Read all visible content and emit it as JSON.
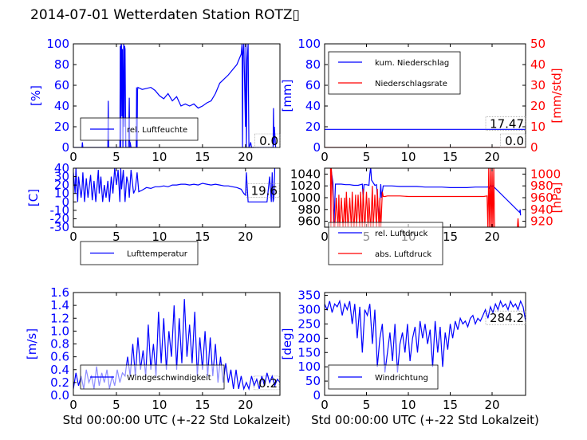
{
  "title": "2014-07-01 Wetterdaten Station ROTZ▯",
  "chart_data": [
    {
      "id": "humidity",
      "type": "line",
      "ylabel": "[%]",
      "xlim": [
        0,
        24
      ],
      "ylim": [
        0,
        100
      ],
      "xticks": [
        0,
        5,
        10,
        15,
        20
      ],
      "yticks": [
        0,
        20,
        40,
        60,
        80,
        100
      ],
      "value_label": "0.0",
      "legend": [
        "rel. Luftfeuchte"
      ],
      "series": [
        {
          "name": "rel. Luftfeuchte",
          "color": "#0000ff",
          "x": [
            0,
            0.5,
            1.0,
            1.05,
            1.1,
            2,
            4,
            4.05,
            4.1,
            5,
            5.4,
            5.45,
            5.5,
            5.55,
            5.6,
            5.65,
            5.7,
            5.75,
            5.8,
            5.85,
            5.9,
            5.95,
            6.0,
            6.05,
            6.1,
            6.4,
            6.5,
            6.55,
            6.6,
            6.7,
            7.0,
            7.3,
            7.35,
            7.4,
            7.45,
            7.5,
            8.0,
            8.5,
            9.0,
            9.5,
            10.0,
            10.5,
            11.0,
            11.5,
            12.0,
            12.5,
            13.0,
            13.5,
            14.0,
            14.5,
            15.0,
            15.5,
            16.0,
            16.5,
            17.0,
            17.5,
            18.0,
            18.5,
            19.0,
            19.5,
            19.6,
            19.65,
            19.7,
            19.8,
            20.0,
            20.05,
            20.1,
            20.2,
            20.3,
            20.4,
            20.5,
            20.6,
            20.7,
            20.8,
            23.0,
            23.2,
            23.25,
            23.3,
            23.35,
            23.5
          ],
          "y": [
            0,
            0,
            0,
            5,
            0,
            0,
            0,
            45,
            0,
            0,
            0,
            98,
            0,
            100,
            98,
            30,
            95,
            0,
            50,
            100,
            20,
            98,
            95,
            40,
            0,
            0,
            48,
            0,
            5,
            0,
            0,
            0,
            58,
            0,
            55,
            58,
            56,
            57,
            58,
            55,
            50,
            47,
            52,
            45,
            49,
            40,
            42,
            40,
            42,
            38,
            40,
            43,
            45,
            52,
            62,
            66,
            70,
            75,
            80,
            90,
            100,
            0,
            90,
            100,
            20,
            100,
            0,
            85,
            100,
            0,
            2,
            5,
            0,
            0,
            0,
            0,
            38,
            2,
            20,
            0
          ]
        }
      ]
    },
    {
      "id": "precip",
      "type": "line",
      "ylabel": "[mm]",
      "y2label": "[mm/std]",
      "xlim": [
        0,
        24
      ],
      "ylim": [
        0,
        100
      ],
      "y2lim": [
        0,
        50
      ],
      "xticks": [
        0,
        5,
        10,
        15,
        20
      ],
      "yticks": [
        0,
        20,
        40,
        60,
        80,
        100
      ],
      "y2ticks": [
        0,
        10,
        20,
        30,
        40,
        50
      ],
      "value_label": "17.47",
      "value_label2": "0.0",
      "legend": [
        "kum. Niederschlag",
        "Niederschlagsrate"
      ],
      "series": [
        {
          "name": "kum. Niederschlag",
          "color": "#0000ff",
          "x": [
            0,
            24
          ],
          "y": [
            17.47,
            17.47
          ]
        },
        {
          "name": "Niederschlagsrate",
          "color": "#ff0000",
          "axis": "y2",
          "x": [
            0,
            24
          ],
          "y": [
            0,
            0
          ]
        }
      ]
    },
    {
      "id": "temperature",
      "type": "line",
      "ylabel": "[C]",
      "xlim": [
        0,
        24
      ],
      "ylim": [
        -30,
        40
      ],
      "xticks": [
        0,
        5,
        10,
        15,
        20
      ],
      "yticks": [
        -30,
        -20,
        -10,
        0,
        10,
        20,
        30,
        40
      ],
      "value_label": "19.6",
      "legend": [
        "Lufttemperatur"
      ],
      "series": [
        {
          "name": "Lufttemperatur",
          "color": "#0000ff",
          "x": [
            0,
            0.2,
            0.3,
            0.5,
            0.6,
            0.9,
            1.0,
            1.1,
            1.3,
            1.5,
            1.7,
            2.0,
            2.2,
            2.4,
            2.6,
            2.9,
            3.0,
            3.2,
            3.4,
            3.6,
            3.8,
            4.0,
            4.2,
            4.4,
            4.6,
            4.8,
            5.0,
            5.2,
            5.4,
            5.5,
            5.6,
            5.8,
            6.0,
            6.2,
            6.4,
            6.5,
            6.7,
            7.0,
            7.2,
            7.4,
            7.6,
            8.0,
            8.5,
            9.0,
            9.5,
            10.0,
            10.5,
            11.0,
            11.5,
            12.0,
            12.5,
            13.0,
            13.5,
            14.0,
            14.5,
            15.0,
            15.5,
            16.0,
            16.5,
            17.0,
            17.5,
            18.0,
            18.5,
            19.0,
            19.5,
            19.8,
            20.0,
            20.1,
            20.3,
            20.5,
            21.0,
            22.0,
            22.5,
            22.8,
            23.0,
            23.1,
            23.2,
            23.3,
            23.4
          ],
          "y": [
            35,
            10,
            40,
            0,
            30,
            5,
            15,
            35,
            0,
            28,
            5,
            32,
            2,
            25,
            0,
            38,
            10,
            30,
            0,
            20,
            5,
            25,
            0,
            30,
            10,
            40,
            20,
            38,
            0,
            40,
            15,
            38,
            0,
            30,
            20,
            5,
            38,
            10,
            15,
            35,
            12,
            14,
            17,
            16,
            18,
            18,
            19,
            18,
            20,
            20,
            21,
            21,
            20,
            21,
            20,
            22,
            21,
            20,
            21,
            20,
            19,
            19,
            18,
            17,
            15,
            10,
            8,
            35,
            0,
            0,
            0,
            0,
            0,
            30,
            0,
            35,
            0,
            5,
            40
          ]
        }
      ]
    },
    {
      "id": "pressure",
      "type": "line",
      "y2label": "[hPa]",
      "xlim": [
        0,
        24
      ],
      "ylim": [
        950,
        1050
      ],
      "y2lim": [
        910,
        1010
      ],
      "xticks": [
        0,
        5,
        10,
        15,
        20
      ],
      "yticks": [
        960,
        980,
        1000,
        1020,
        1040
      ],
      "y2ticks": [
        920,
        940,
        960,
        980,
        1000
      ],
      "legend": [
        "rel. Luftdruck",
        "abs. Luftdruck"
      ],
      "series": [
        {
          "name": "rel. Luftdruck",
          "color": "#0000ff",
          "x": [
            0.7,
            0.8,
            1.0,
            1.1,
            1.3,
            2.0,
            2.5,
            3.0,
            3.5,
            4.0,
            4.5,
            4.6,
            4.7,
            5.0,
            5.3,
            5.4,
            5.5,
            5.6,
            6.0,
            6.2,
            6.5,
            6.7,
            6.8,
            7.0,
            7.5,
            8.0,
            9.0,
            10.0,
            11.0,
            12.0,
            13.0,
            14.0,
            15.0,
            16.0,
            17.0,
            18.0,
            19.0,
            19.5,
            19.6,
            19.7,
            19.8,
            19.9,
            20.0,
            20.1,
            23.3,
            23.35,
            23.4
          ],
          "y": [
            1020,
            1045,
            1025,
            950,
            1023,
            1023,
            1022,
            1022,
            1021,
            1021,
            1023,
            1000,
            1022,
            1022,
            1021,
            1040,
            1052,
            1030,
            1021,
            1022,
            960,
            1023,
            1000,
            1020,
            1020,
            1020,
            1019,
            1019,
            1019,
            1018,
            1018,
            1018,
            1017,
            1017,
            1017,
            1018,
            1018,
            1018,
            1020,
            1015,
            1022,
            1019,
            1018,
            1020,
            975,
            980,
            970
          ]
        },
        {
          "name": "abs. Luftdruck",
          "color": "#ff0000",
          "axis": "y2",
          "x": [
            0.7,
            0.75,
            0.8,
            1.0,
            1.1,
            1.2,
            1.4,
            1.6,
            1.7,
            1.8,
            2.0,
            2.2,
            2.4,
            2.5,
            2.6,
            2.8,
            3.0,
            3.2,
            3.3,
            3.5,
            3.7,
            3.8,
            4.0,
            4.2,
            4.3,
            4.5,
            4.6,
            4.8,
            5.0,
            5.2,
            5.3,
            5.5,
            5.7,
            5.8,
            6.0,
            6.2,
            6.3,
            6.5,
            6.6,
            6.7,
            6.9,
            7.0,
            7.2,
            7.5,
            8.0,
            9.0,
            10.0,
            11.0,
            12.0,
            13.0,
            14.0,
            15.0,
            16.0,
            17.0,
            18.0,
            19.0,
            19.4,
            19.5,
            19.6,
            19.7,
            19.8,
            19.9,
            20.0,
            20.1,
            20.2,
            20.3,
            23.0,
            23.1,
            23.2
          ],
          "y": [
            1010,
            905,
            1010,
            960,
            905,
            905,
            960,
            905,
            965,
            905,
            960,
            905,
            960,
            905,
            970,
            905,
            960,
            905,
            970,
            905,
            965,
            905,
            965,
            905,
            970,
            905,
            975,
            905,
            970,
            905,
            960,
            905,
            980,
            905,
            965,
            905,
            975,
            905,
            960,
            905,
            970,
            962,
            962,
            963,
            963,
            963,
            962,
            962,
            962,
            962,
            962,
            962,
            962,
            962,
            962,
            962,
            963,
            905,
            1010,
            905,
            1010,
            905,
            1010,
            905,
            1010,
            905,
            905,
            925,
            905
          ]
        }
      ]
    },
    {
      "id": "wind-speed",
      "type": "line",
      "ylabel": "[m/s]",
      "xlabel": "Std 00:00:00 UTC (+-22 Std Lokalzeit)",
      "xlim": [
        0,
        24
      ],
      "ylim": [
        0,
        1.6
      ],
      "xticks": [
        0,
        5,
        10,
        15,
        20
      ],
      "yticks": [
        0.0,
        0.2,
        0.4,
        0.6,
        0.8,
        1.0,
        1.2,
        1.4,
        1.6
      ],
      "value_label": "0.2",
      "legend": [
        "Windgeschwindigkeit"
      ],
      "series": [
        {
          "name": "Windgeschwindigkeit",
          "color": "#0000ff",
          "x": [
            0,
            0.3,
            0.6,
            0.9,
            1.2,
            1.5,
            1.8,
            2.1,
            2.4,
            2.7,
            3.0,
            3.3,
            3.6,
            3.9,
            4.2,
            4.5,
            4.8,
            5.1,
            5.4,
            5.7,
            6.0,
            6.3,
            6.6,
            6.9,
            7.2,
            7.5,
            7.8,
            8.1,
            8.4,
            8.7,
            9.0,
            9.3,
            9.6,
            9.9,
            10.2,
            10.5,
            10.8,
            11.1,
            11.4,
            11.7,
            12.0,
            12.3,
            12.6,
            12.9,
            13.2,
            13.5,
            13.8,
            14.1,
            14.4,
            14.7,
            15.0,
            15.3,
            15.6,
            15.9,
            16.2,
            16.5,
            16.8,
            17.1,
            17.4,
            17.7,
            18.0,
            18.3,
            18.6,
            18.9,
            19.2,
            19.5,
            19.8,
            20.1,
            20.4,
            20.7,
            21.0,
            21.3,
            21.6,
            21.9,
            22.2,
            22.5,
            22.8,
            23.1,
            23.4,
            23.7,
            24.0
          ],
          "y": [
            0.1,
            0.35,
            0.15,
            0.3,
            0.1,
            0.4,
            0.2,
            0.3,
            0.1,
            0.45,
            0.15,
            0.35,
            0.2,
            0.4,
            0.1,
            0.3,
            0.15,
            0.4,
            0.2,
            0.35,
            0.3,
            0.6,
            0.3,
            0.8,
            0.3,
            0.9,
            0.4,
            0.7,
            0.3,
            1.1,
            0.4,
            0.8,
            0.3,
            1.3,
            0.5,
            1.2,
            0.4,
            1.0,
            0.6,
            1.4,
            0.4,
            1.2,
            0.5,
            1.5,
            0.6,
            1.1,
            0.5,
            1.3,
            0.3,
            0.9,
            0.4,
            1.0,
            0.3,
            0.9,
            0.3,
            0.8,
            0.2,
            0.6,
            0.2,
            0.5,
            0.2,
            0.4,
            0.1,
            0.4,
            0.1,
            0.3,
            0.1,
            0.2,
            0.1,
            0.3,
            0.15,
            0.25,
            0.1,
            0.3,
            0.15,
            0.35,
            0.2,
            0.3,
            0.15,
            0.25,
            0.2
          ]
        }
      ]
    },
    {
      "id": "wind-direction",
      "type": "line",
      "ylabel": "[deg]",
      "xlabel": "Std 00:00:00 UTC (+-22 Std Lokalzeit)",
      "xlim": [
        0,
        24
      ],
      "ylim": [
        0,
        360
      ],
      "xticks": [
        0,
        5,
        10,
        15,
        20
      ],
      "yticks": [
        0,
        50,
        100,
        150,
        200,
        250,
        300,
        350
      ],
      "value_label": "284.2",
      "legend": [
        "Windrichtung"
      ],
      "series": [
        {
          "name": "Windrichtung",
          "color": "#0000ff",
          "x": [
            0,
            0.3,
            0.6,
            0.9,
            1.2,
            1.5,
            1.8,
            2.1,
            2.4,
            2.7,
            3.0,
            3.3,
            3.6,
            3.9,
            4.2,
            4.5,
            4.8,
            5.1,
            5.4,
            5.7,
            6.0,
            6.3,
            6.6,
            6.9,
            7.2,
            7.5,
            7.8,
            8.1,
            8.4,
            8.7,
            9.0,
            9.3,
            9.6,
            9.9,
            10.2,
            10.5,
            10.8,
            11.1,
            11.4,
            11.7,
            12.0,
            12.3,
            12.6,
            12.9,
            13.2,
            13.5,
            13.8,
            14.1,
            14.4,
            14.7,
            15.0,
            15.3,
            15.6,
            15.9,
            16.2,
            16.5,
            16.8,
            17.1,
            17.4,
            17.7,
            18.0,
            18.3,
            18.6,
            18.9,
            19.2,
            19.5,
            19.8,
            20.1,
            20.4,
            20.7,
            21.0,
            21.3,
            21.6,
            21.9,
            22.2,
            22.5,
            22.8,
            23.1,
            23.4,
            23.7,
            24.0
          ],
          "y": [
            320,
            300,
            330,
            290,
            320,
            310,
            330,
            280,
            320,
            300,
            330,
            250,
            320,
            200,
            310,
            150,
            300,
            280,
            320,
            180,
            300,
            100,
            200,
            250,
            80,
            150,
            220,
            120,
            250,
            80,
            180,
            220,
            150,
            250,
            120,
            200,
            240,
            150,
            260,
            200,
            250,
            180,
            230,
            100,
            260,
            150,
            240,
            100,
            220,
            160,
            250,
            200,
            260,
            230,
            270,
            250,
            260,
            240,
            270,
            280,
            250,
            270,
            260,
            280,
            300,
            270,
            310,
            290,
            320,
            300,
            330,
            310,
            320,
            300,
            330,
            310,
            320,
            300,
            330,
            310,
            260
          ]
        }
      ]
    }
  ]
}
